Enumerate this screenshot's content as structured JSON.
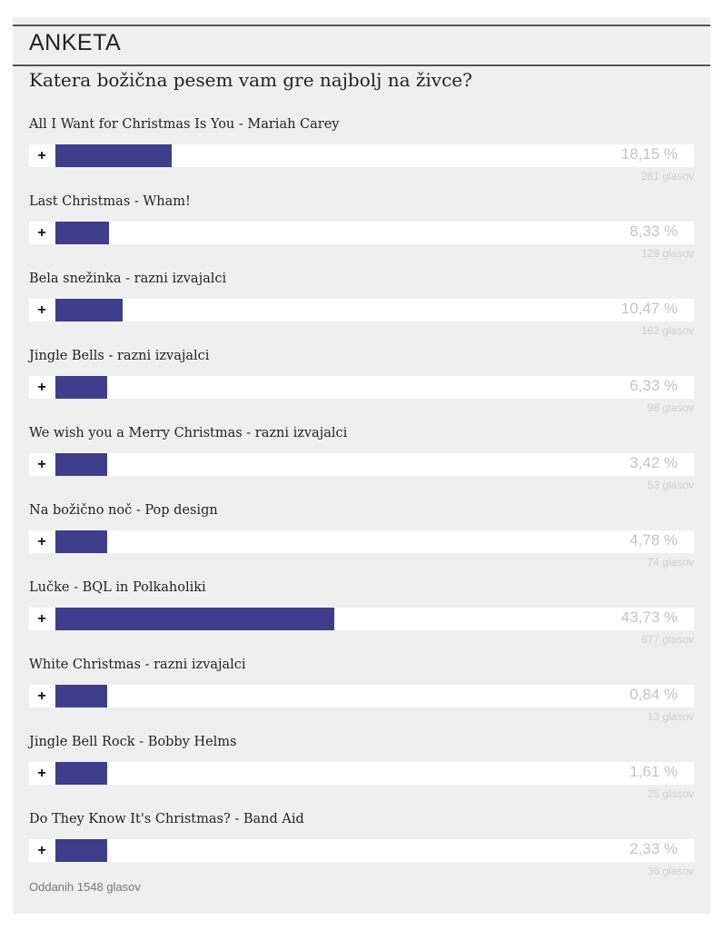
{
  "poll": {
    "title": "ANKETA",
    "question": "Katera božična pesem vam gre najbolj na živce?",
    "vote_symbol": "+",
    "bar_color": "#3f3e8c",
    "total_label": "Oddanih 1548 glasov",
    "options": [
      {
        "label": "All I Want for Christmas Is You - Mariah Carey",
        "percent": "18,15 %",
        "votes": "281 glasov",
        "fill_percent": 18.15
      },
      {
        "label": "Last Christmas - Wham!",
        "percent": "8,33 %",
        "votes": "129 glasov",
        "fill_percent": 8.33
      },
      {
        "label": "Bela snežinka - razni izvajalci",
        "percent": "10,47 %",
        "votes": "162 glasov",
        "fill_percent": 10.47
      },
      {
        "label": "Jingle Bells - razni izvajalci",
        "percent": "6,33 %",
        "votes": "98 glasov",
        "fill_percent": 6.33
      },
      {
        "label": "We wish you a Merry Christmas - razni izvajalci",
        "percent": "3,42 %",
        "votes": "53 glasov",
        "fill_percent": 3.42
      },
      {
        "label": "Na božično noč - Pop design",
        "percent": "4,78 %",
        "votes": "74 glasov",
        "fill_percent": 4.78
      },
      {
        "label": "Lučke - BQL in Polkaholiki",
        "percent": "43,73 %",
        "votes": "677 glasov",
        "fill_percent": 43.73
      },
      {
        "label": "White Christmas - razni izvajalci",
        "percent": "0,84 %",
        "votes": "13 glasov",
        "fill_percent": 0.84
      },
      {
        "label": "Jingle Bell Rock - Bobby Helms",
        "percent": "1,61 %",
        "votes": "25 glasov",
        "fill_percent": 1.61
      },
      {
        "label": "Do They Know It's Christmas? - Band Aid",
        "percent": "2,33 %",
        "votes": "36 glasov",
        "fill_percent": 2.33
      }
    ]
  }
}
